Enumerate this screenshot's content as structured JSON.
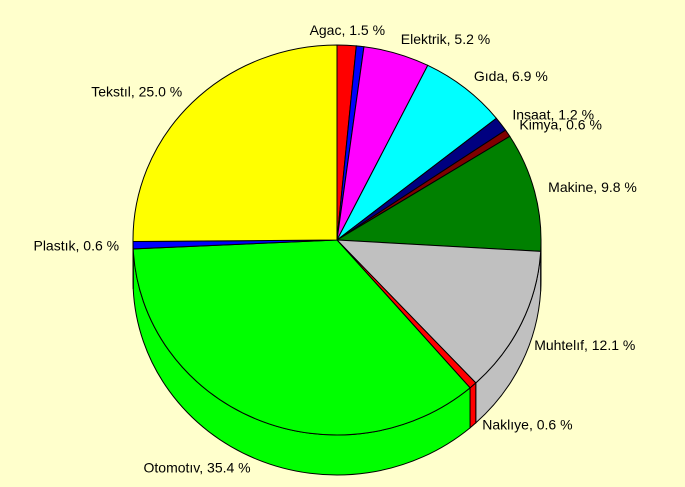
{
  "chart_data": {
    "type": "pie",
    "labels": [
      "Agac, 1.5 %",
      null,
      "Elektrik, 5.2 %",
      "Gıda, 6.9 %",
      "Insaat, 1.2 %",
      "Kimya, 0.6 %",
      "Makine, 9.8 %",
      "Muhtelıf, 12.1 %",
      "Naklıye, 0.6 %",
      "Otomotıv, 35.4 %",
      "Plastık, 0.6 %",
      "Tekstıl, 25.0 %"
    ],
    "values": [
      1.5,
      0.6,
      5.2,
      6.9,
      1.2,
      0.6,
      9.8,
      12.1,
      0.6,
      35.4,
      0.6,
      25.0
    ],
    "colors": [
      "#ff0000",
      "#0000ff",
      "#ff00ff",
      "#00ffff",
      "#000080",
      "#800000",
      "#008000",
      "#c0c0c0",
      "#ff0000",
      "#00ff00",
      "#0000ff",
      "#ffff00"
    ]
  }
}
